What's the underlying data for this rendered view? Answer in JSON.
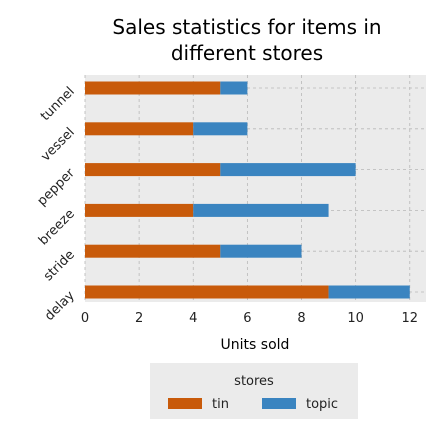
{
  "chart_data": {
    "type": "bar",
    "orientation": "horizontal",
    "stacked": true,
    "title_lines": [
      "Sales statistics for items in",
      "different stores"
    ],
    "xlabel": "Units sold",
    "ylabel": "",
    "categories": [
      "delay",
      "stride",
      "breeze",
      "pepper",
      "vessel",
      "tunnel"
    ],
    "series": [
      {
        "name": "tin",
        "color": "#c85a0a",
        "values": [
          9,
          5,
          4,
          5,
          4,
          5
        ]
      },
      {
        "name": "topic",
        "color": "#3a84c0",
        "values": [
          3,
          3,
          5,
          5,
          2,
          1
        ]
      }
    ],
    "xlim": [
      0,
      12.6
    ],
    "xticks": [
      0,
      2,
      4,
      6,
      8,
      10,
      12
    ],
    "grid": true,
    "legend": {
      "title": "stores",
      "placement": "bottom-center"
    }
  }
}
